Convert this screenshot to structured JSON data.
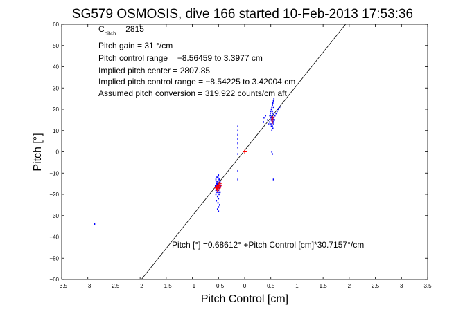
{
  "chart_data": {
    "type": "scatter",
    "title": "SG579 OSMOSIS, dive 166 started 10-Feb-2013 17:53:36",
    "xlabel": "Pitch Control [cm]",
    "ylabel": "Pitch [°]",
    "xlim": [
      -3.5,
      3.5
    ],
    "ylim": [
      -60,
      60
    ],
    "xticks": [
      -3.5,
      -3,
      -2.5,
      -2,
      -1.5,
      -1,
      -0.5,
      0,
      0.5,
      1,
      1.5,
      2,
      2.5,
      3,
      3.5
    ],
    "yticks": [
      -60,
      -50,
      -40,
      -30,
      -20,
      -10,
      0,
      10,
      20,
      30,
      40,
      50,
      60
    ],
    "xtick_labels": [
      "−3.5",
      "−3",
      "−2.5",
      "−2",
      "−1.5",
      "−1",
      "−0.5",
      "0",
      "0.5",
      "1",
      "1.5",
      "2",
      "2.5",
      "3",
      "3.5"
    ],
    "ytick_labels": [
      "−60",
      "−50",
      "−40",
      "−30",
      "−20",
      "−10",
      "0",
      "10",
      "20",
      "30",
      "40",
      "50",
      "60"
    ],
    "grid": false,
    "fit_line": {
      "offset": 0.68612,
      "slope": 30.7157,
      "color": "#000000"
    },
    "series": [
      {
        "color": "#0000ff",
        "x": [
          -2.87,
          -0.56,
          -0.55,
          -0.54,
          -0.53,
          -0.52,
          -0.51,
          -0.5,
          -0.49,
          -0.48,
          -0.47,
          -0.46,
          -0.55,
          -0.53,
          -0.52,
          -0.5,
          -0.49,
          -0.47,
          -0.54,
          -0.51,
          -0.5,
          -0.48,
          -0.52,
          -0.5,
          -0.55,
          -0.53,
          -0.51,
          -0.49,
          -0.47,
          -0.53,
          -0.5,
          -0.48,
          -0.52,
          -0.5,
          -0.54,
          -0.51,
          -0.49,
          -0.52,
          -0.5,
          -0.55,
          -0.53,
          -0.13,
          -0.13,
          -0.13,
          -0.13,
          -0.13,
          -0.13,
          -0.13,
          -0.13,
          -0.13,
          0.36,
          0.37,
          0.4,
          0.44,
          0.46,
          0.48,
          0.49,
          0.5,
          0.51,
          0.52,
          0.53,
          0.54,
          0.55,
          0.56,
          0.57,
          0.48,
          0.5,
          0.51,
          0.52,
          0.53,
          0.54,
          0.55,
          0.56,
          0.49,
          0.52,
          0.53,
          0.55,
          0.54,
          0.52,
          0.51,
          0.5,
          0.53,
          0.55,
          0.56,
          0.58,
          0.6,
          0.62,
          0.64,
          0.67,
          0.51,
          0.54,
          0.52,
          0.55,
          0.53,
          0.54,
          0.56,
          0.51,
          0.53,
          0.52,
          0.55,
          0.54,
          0.53,
          0.56
        ],
        "y": [
          -34,
          -16,
          -18,
          -15,
          -17,
          -16,
          -14,
          -18,
          -16,
          -17,
          -15,
          -16,
          -20,
          -19,
          -21,
          -22,
          -20,
          -19,
          -23,
          -24,
          -26,
          -25,
          -27,
          -28,
          -13,
          -14,
          -12,
          -13,
          -14,
          -12,
          -11,
          -13,
          -15,
          -16,
          -18,
          -17,
          -19,
          -17,
          -15,
          -16,
          -17,
          12,
          10,
          8,
          6,
          4,
          2,
          -1,
          -9,
          -13,
          14,
          16,
          17,
          15,
          13,
          14,
          16,
          17,
          15,
          13,
          12,
          14,
          16,
          18,
          15,
          17,
          19,
          20,
          21,
          22,
          23,
          24,
          25,
          18,
          20,
          19,
          21,
          11,
          10,
          12,
          13,
          14,
          16,
          15,
          17,
          18,
          19,
          20,
          21,
          15,
          14,
          16,
          13,
          17,
          15,
          14,
          16,
          -1,
          0,
          -13,
          16,
          18,
          15
        ]
      },
      {
        "color": "#ff0000",
        "marker": "plus",
        "x": [
          -0.53,
          -0.5,
          -0.48,
          -0.52,
          -0.49,
          -0.51,
          -0.47,
          -0.54,
          0.0,
          0.52,
          0.54,
          0.53
        ],
        "y": [
          -17,
          -16,
          -15,
          -18,
          -17,
          -16,
          -16,
          -17,
          0,
          15,
          16,
          14
        ]
      }
    ]
  },
  "annotations": {
    "c_pitch_main": "C",
    "c_pitch_sub": "pitch",
    "c_pitch_value": " = 2815",
    "gain": "Pitch gain = 31 °/cm",
    "range": "Pitch control range = −8.56459 to 3.3977 cm",
    "center": "Implied pitch center = 2807.85",
    "implied_range": "Implied pitch control range = −8.54225 to 3.42004 cm",
    "conversion": "Assumed pitch conversion = 319.922 counts/cm aft",
    "fit_equation": "Pitch [°] =0.68612° +Pitch Control [cm]*30.7157°/cm"
  }
}
